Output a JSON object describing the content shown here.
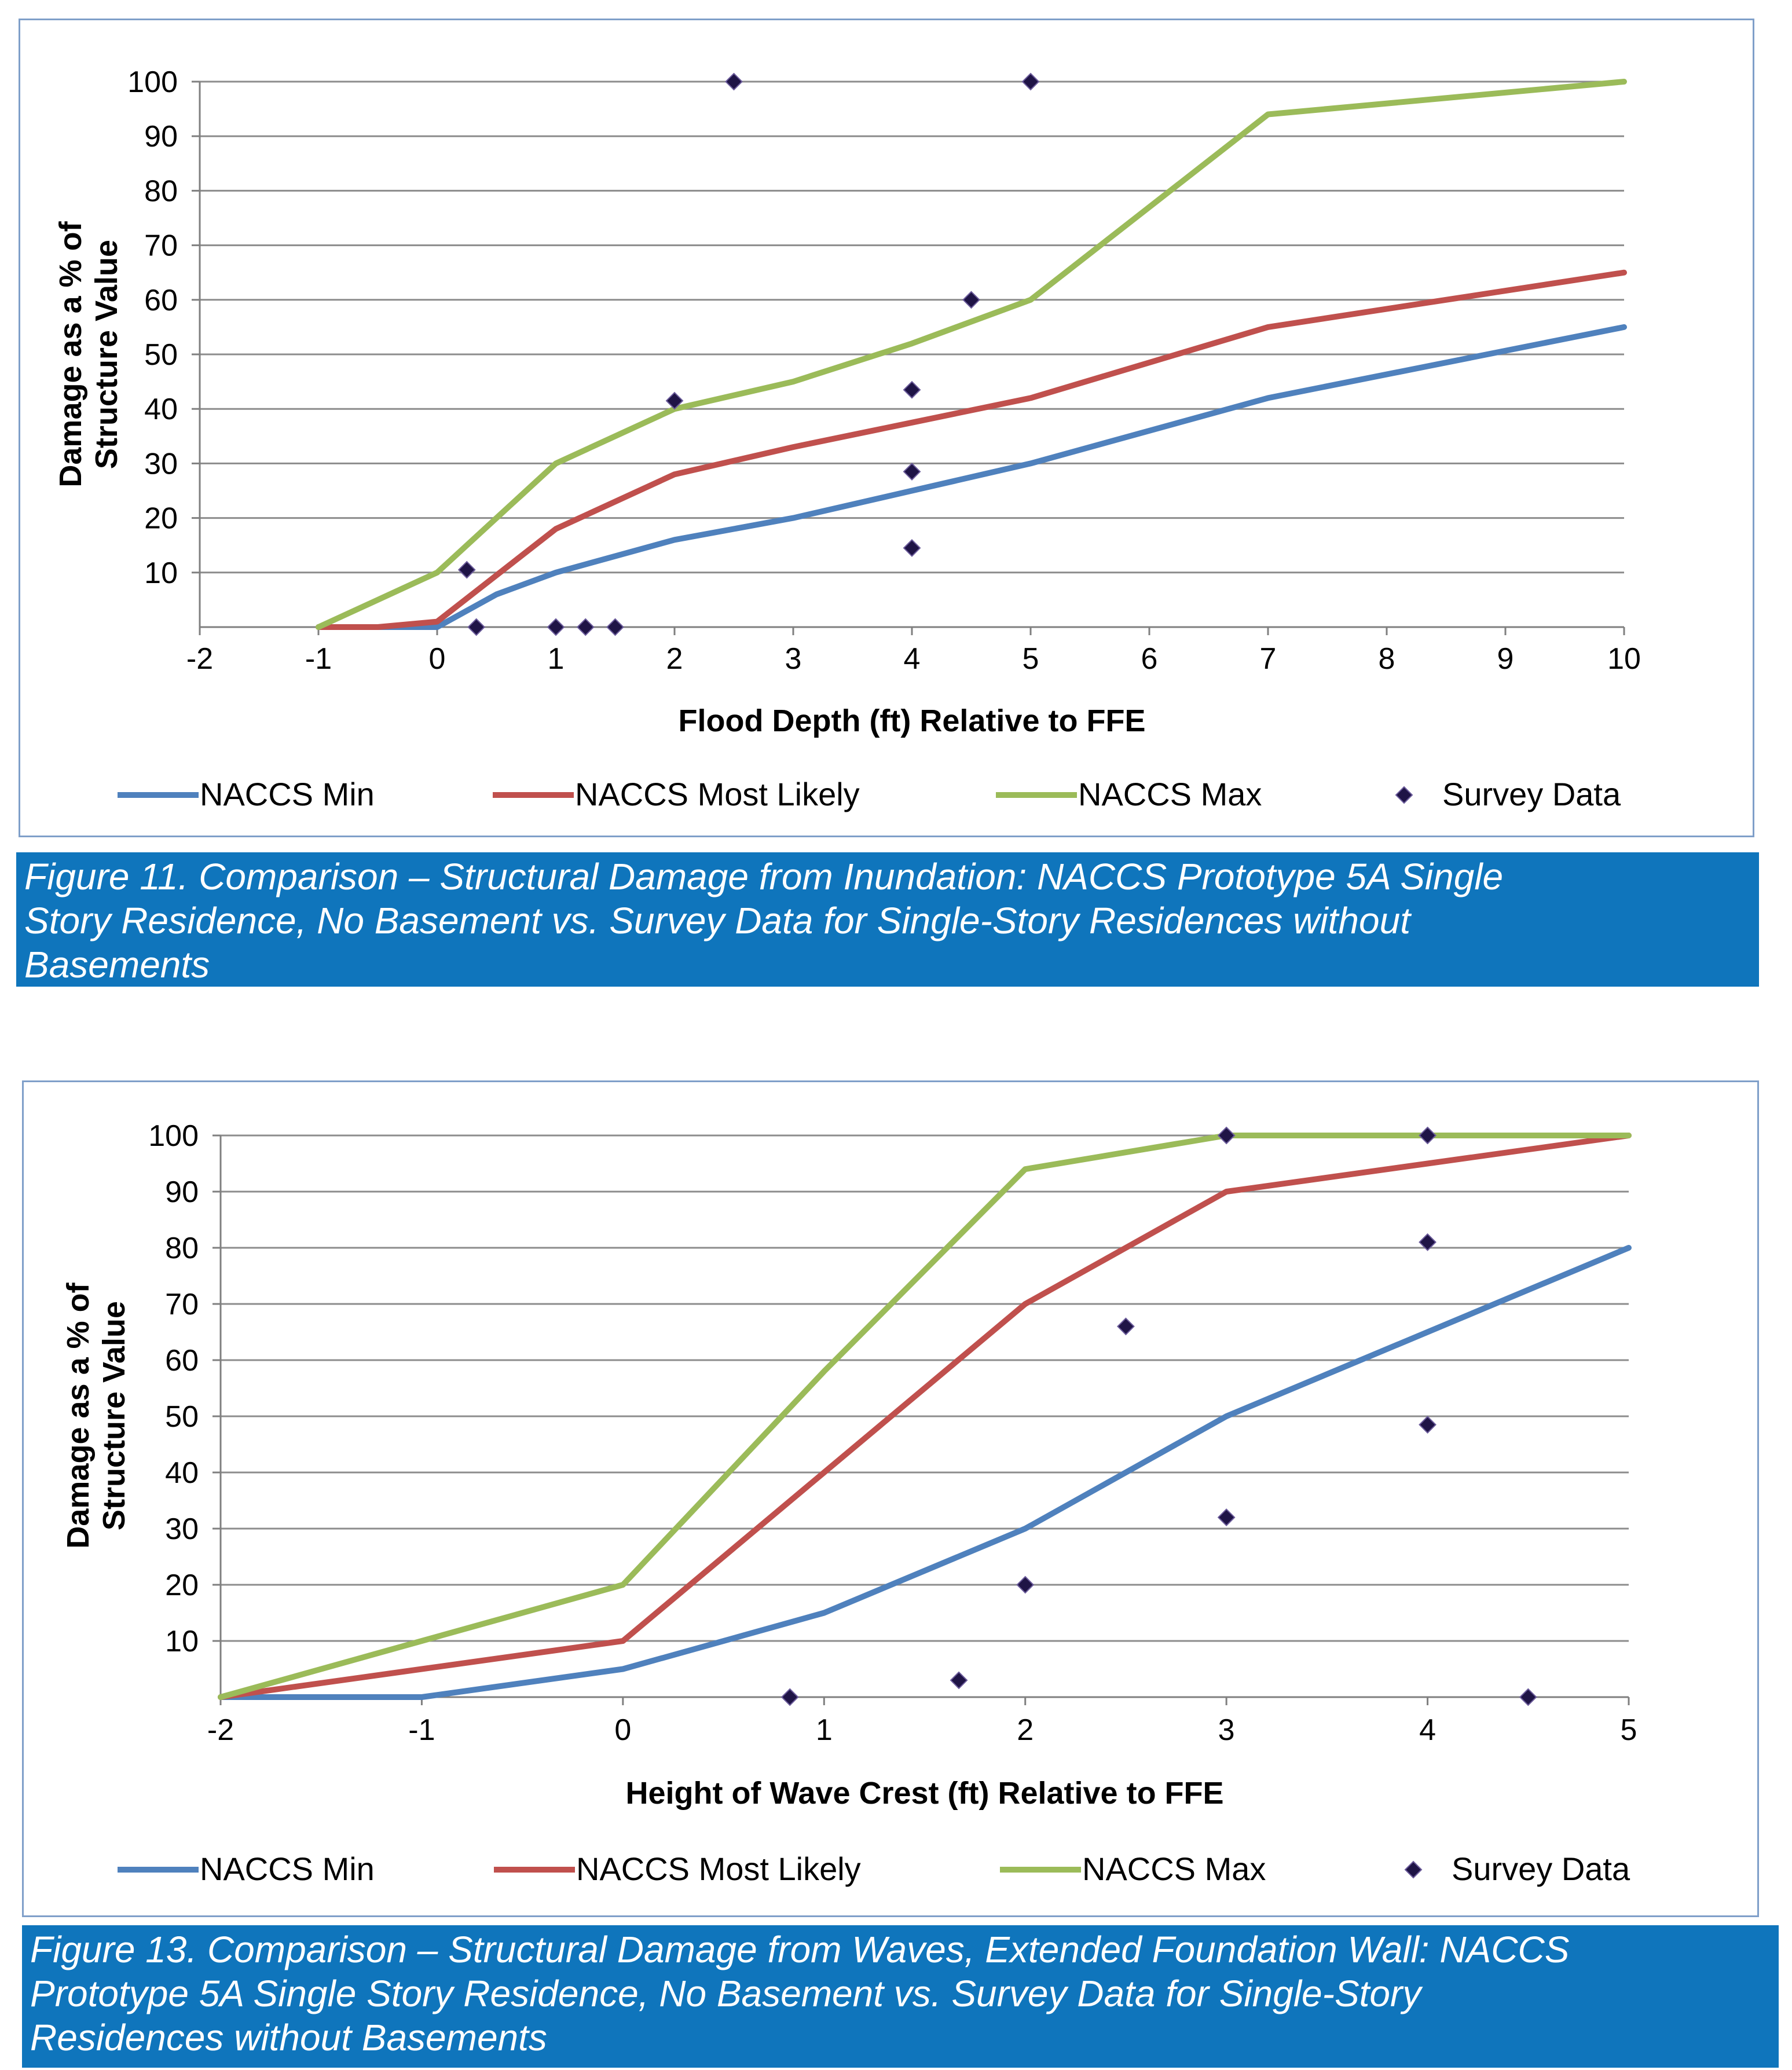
{
  "chart_data": [
    {
      "type": "line",
      "xlabel": "Flood Depth (ft) Relative to FFE",
      "ylabel": "Damage as a % of Structure Value",
      "ylabel_lines": [
        "Damage as a % of",
        "Structure Value"
      ],
      "xlim": [
        -2,
        10
      ],
      "ylim": [
        0,
        100
      ],
      "x_ticks": [
        "-2",
        "-1",
        "0",
        "1",
        "2",
        "3",
        "4",
        "5",
        "6",
        "7",
        "8",
        "9",
        "10"
      ],
      "y_ticks": [
        "10",
        "20",
        "30",
        "40",
        "50",
        "60",
        "70",
        "80",
        "90",
        "100"
      ],
      "grid": true,
      "legend_position": "bottom",
      "series": [
        {
          "name": "NACCS Min",
          "color": "#4f81bd",
          "points": [
            [
              -1,
              0
            ],
            [
              0,
              0
            ],
            [
              0.5,
              6
            ],
            [
              1,
              10
            ],
            [
              2,
              16
            ],
            [
              3,
              20
            ],
            [
              4,
              25
            ],
            [
              5,
              30
            ],
            [
              7,
              42
            ],
            [
              10,
              55
            ]
          ]
        },
        {
          "name": "NACCS Most Likely",
          "color": "#c0504d",
          "points": [
            [
              -1,
              0
            ],
            [
              -0.5,
              0
            ],
            [
              0,
              1
            ],
            [
              1,
              18
            ],
            [
              2,
              28
            ],
            [
              3,
              33
            ],
            [
              4,
              37.5
            ],
            [
              5,
              42
            ],
            [
              7,
              55
            ],
            [
              10,
              65
            ]
          ]
        },
        {
          "name": "NACCS Max",
          "color": "#9bbb59",
          "points": [
            [
              -1,
              0
            ],
            [
              0,
              10
            ],
            [
              1,
              30
            ],
            [
              2,
              40
            ],
            [
              3,
              45
            ],
            [
              4,
              52
            ],
            [
              5,
              60
            ],
            [
              7,
              94
            ],
            [
              10,
              100
            ]
          ]
        }
      ],
      "scatter": {
        "name": "Survey Data",
        "color": "#1f1446",
        "points": [
          [
            2.5,
            100
          ],
          [
            5,
            100
          ],
          [
            4.5,
            60
          ],
          [
            2,
            41.5
          ],
          [
            4,
            43.5
          ],
          [
            4,
            28.5
          ],
          [
            4,
            14.5
          ],
          [
            0.25,
            10.5
          ],
          [
            0.33,
            0
          ],
          [
            1,
            0
          ],
          [
            1.25,
            0
          ],
          [
            1.5,
            0
          ]
        ]
      },
      "caption": "Figure 11. Comparison – Structural Damage from Inundation: NACCS Prototype 5A Single Story Residence, No Basement vs. Survey Data for Single-Story Residences without Basements",
      "caption_lines": [
        "Figure 11. Comparison – Structural Damage from Inundation: NACCS Prototype 5A Single",
        "Story Residence, No Basement vs. Survey Data for Single-Story Residences without",
        "Basements"
      ]
    },
    {
      "type": "line",
      "xlabel": "Height of Wave Crest (ft) Relative to FFE",
      "ylabel": "Damage as a % of Structure Value",
      "ylabel_lines": [
        "Damage as a % of",
        "Structure Value"
      ],
      "xlim": [
        -2,
        5
      ],
      "ylim": [
        0,
        100
      ],
      "x_ticks": [
        "-2",
        "-1",
        "0",
        "1",
        "2",
        "3",
        "4",
        "5"
      ],
      "y_ticks": [
        "10",
        "20",
        "30",
        "40",
        "50",
        "60",
        "70",
        "80",
        "90",
        "100"
      ],
      "grid": true,
      "legend_position": "bottom",
      "series": [
        {
          "name": "NACCS Min",
          "color": "#4f81bd",
          "points": [
            [
              -2,
              0
            ],
            [
              -1,
              0
            ],
            [
              0,
              5
            ],
            [
              1,
              15
            ],
            [
              2,
              30
            ],
            [
              3,
              50
            ],
            [
              4,
              65
            ],
            [
              5,
              80
            ]
          ]
        },
        {
          "name": "NACCS Most Likely",
          "color": "#c0504d",
          "points": [
            [
              -2,
              0
            ],
            [
              -1,
              5
            ],
            [
              0,
              10
            ],
            [
              1,
              40
            ],
            [
              2,
              70
            ],
            [
              3,
              90
            ],
            [
              4,
              95
            ],
            [
              5,
              100
            ]
          ]
        },
        {
          "name": "NACCS Max",
          "color": "#9bbb59",
          "points": [
            [
              -2,
              0
            ],
            [
              -1,
              10
            ],
            [
              0,
              20
            ],
            [
              1,
              58
            ],
            [
              2,
              94
            ],
            [
              3,
              100
            ],
            [
              4,
              100
            ],
            [
              5,
              100
            ]
          ]
        }
      ],
      "scatter": {
        "name": "Survey Data",
        "color": "#1f1446",
        "points": [
          [
            3,
            100
          ],
          [
            4,
            100
          ],
          [
            4,
            81
          ],
          [
            2.5,
            66
          ],
          [
            4,
            48.5
          ],
          [
            3,
            32
          ],
          [
            2,
            20
          ],
          [
            1.67,
            3
          ],
          [
            0.83,
            0
          ],
          [
            4.5,
            0
          ]
        ]
      },
      "caption": "Figure 13. Comparison – Structural Damage from Waves, Extended Foundation Wall: NACCS Prototype 5A Single Story Residence, No Basement vs. Survey Data for Single-Story Residences without Basements",
      "caption_lines": [
        "Figure 13. Comparison – Structural Damage from Waves, Extended Foundation Wall: NACCS",
        "Prototype 5A Single Story Residence, No Basement vs. Survey Data for Single-Story",
        "Residences without Basements"
      ]
    }
  ]
}
